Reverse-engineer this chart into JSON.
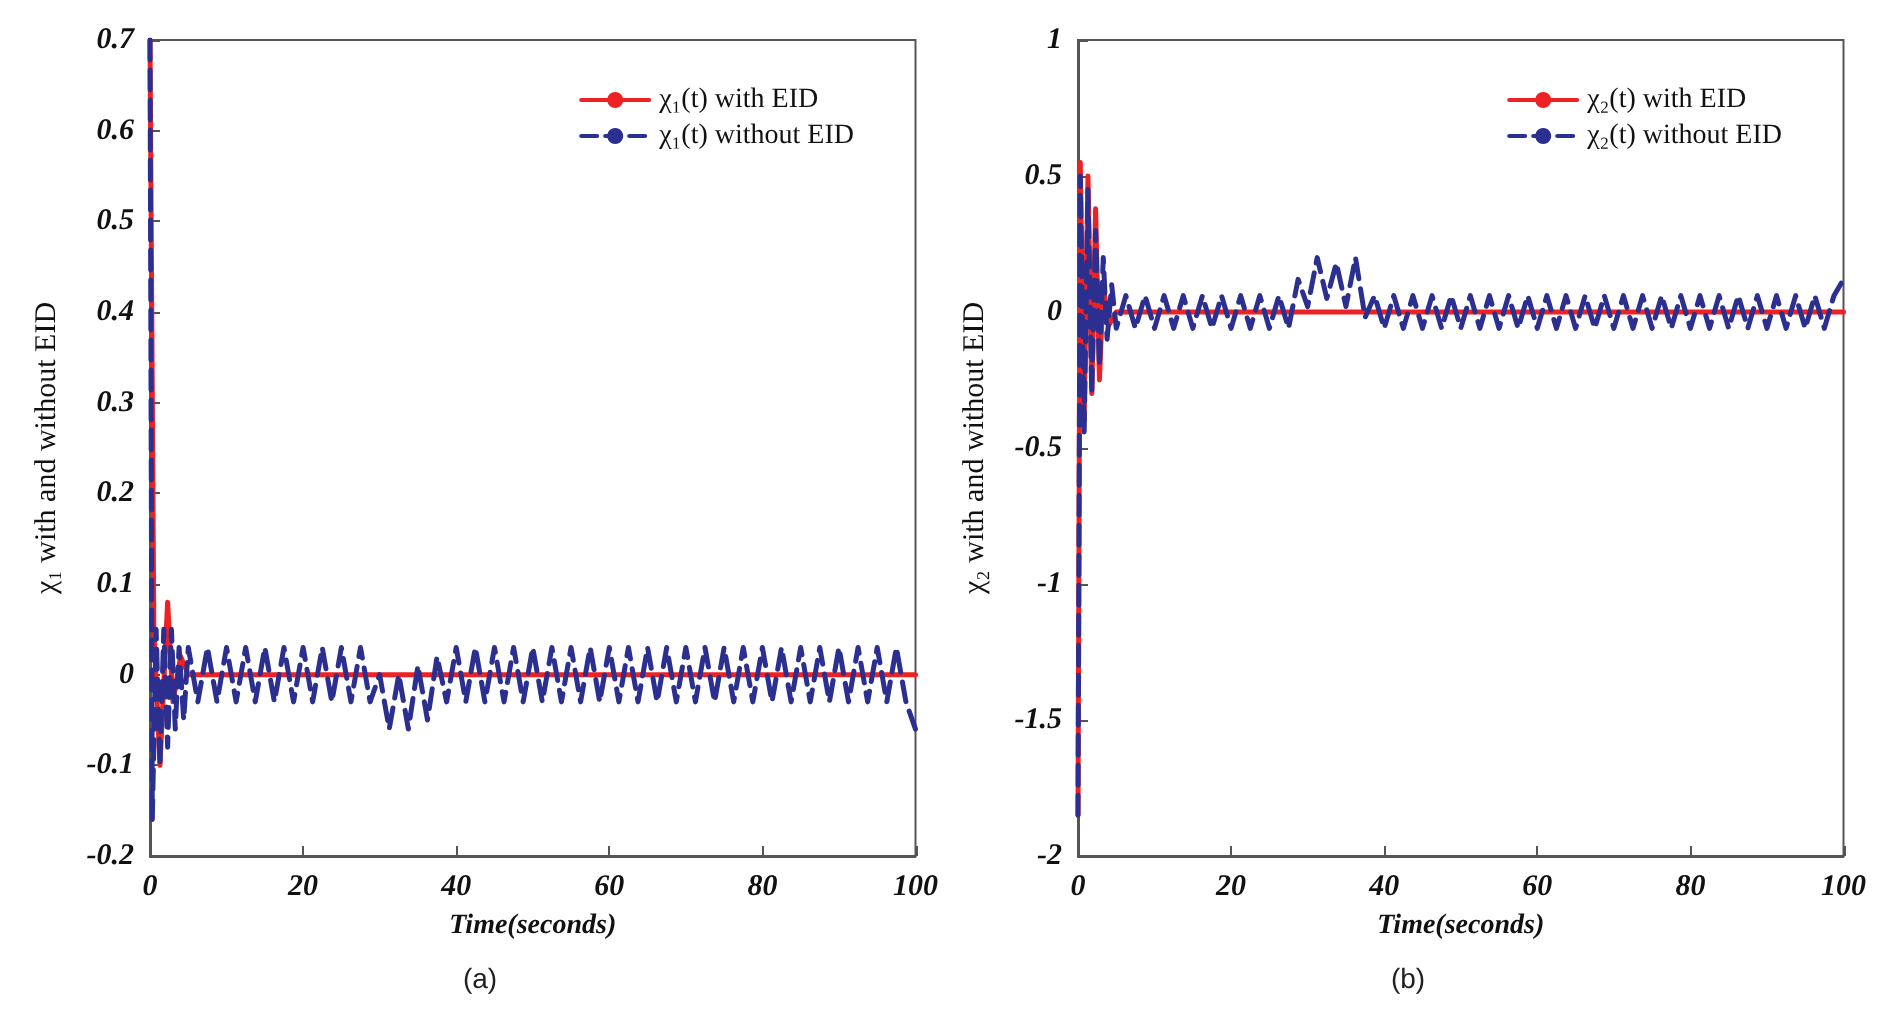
{
  "chart_data": [
    {
      "type": "line",
      "xlabel": "Time(seconds)",
      "ylabel": "χ₁ with and without EID",
      "annotations": [
        "(a)"
      ],
      "xlim": [
        0,
        100
      ],
      "xticks": [
        0,
        20,
        40,
        60,
        80,
        100
      ],
      "ylim": [
        -0.2,
        0.7
      ],
      "yticks": [
        -0.2,
        -0.1,
        0,
        0.1,
        0.2,
        0.3,
        0.4,
        0.5,
        0.6,
        0.7
      ],
      "grid": false,
      "legend": "top right",
      "marker": "none",
      "series": [
        {
          "name": "χ₁(t) with EID",
          "color": "#ee2222",
          "line_style": "solid",
          "x": [
            0,
            0.5,
            1.3,
            2.3,
            3,
            4,
            5,
            100
          ],
          "values": [
            0.7,
            0.05,
            -0.1,
            0.08,
            -0.03,
            0.02,
            0,
            0
          ]
        },
        {
          "name": "χ₁(t) without EID",
          "color": "#2b2f8f",
          "line_style": "dashed",
          "x": [
            0,
            0.3,
            0.8,
            1.3,
            1.8,
            2.3,
            2.8,
            3.3,
            3.8,
            4.4,
            5,
            6.25,
            7.5,
            8.75,
            10,
            11.25,
            12.5,
            13.75,
            15,
            16.25,
            17.5,
            18.75,
            20,
            21.25,
            22.5,
            23.75,
            25,
            26.25,
            27.5,
            28.75,
            30,
            31.25,
            32.5,
            33.75,
            35,
            36.25,
            37.5,
            38.75,
            40,
            41.25,
            42.5,
            43.75,
            45,
            46.25,
            47.5,
            48.75,
            50,
            51.25,
            52.5,
            53.75,
            55,
            56.25,
            57.5,
            58.75,
            60,
            61.25,
            62.5,
            63.75,
            65,
            66.25,
            67.5,
            68.75,
            70,
            71.25,
            72.5,
            73.75,
            75,
            76.25,
            77.5,
            78.75,
            80,
            81.25,
            82.5,
            83.75,
            85,
            86.25,
            87.5,
            88.75,
            90,
            91.25,
            92.5,
            93.75,
            95,
            96.25,
            97.5,
            98.75,
            100
          ],
          "values": [
            0.7,
            -0.16,
            0.05,
            -0.1,
            0.05,
            -0.08,
            0.05,
            -0.06,
            0.03,
            -0.05,
            0.03,
            -0.03,
            0.03,
            -0.03,
            0.03,
            -0.03,
            0.03,
            -0.03,
            0.03,
            -0.03,
            0.03,
            -0.03,
            0.03,
            -0.03,
            0.03,
            -0.03,
            0.03,
            -0.03,
            0.03,
            -0.03,
            0,
            -0.06,
            0,
            -0.06,
            0.01,
            -0.05,
            0.02,
            -0.03,
            0.03,
            -0.03,
            0.03,
            -0.03,
            0.03,
            -0.03,
            0.03,
            -0.03,
            0.03,
            -0.03,
            0.03,
            -0.03,
            0.03,
            -0.03,
            0.03,
            -0.03,
            0.03,
            -0.03,
            0.03,
            -0.03,
            0.03,
            -0.03,
            0.03,
            -0.03,
            0.03,
            -0.03,
            0.03,
            -0.03,
            0.03,
            -0.03,
            0.03,
            -0.03,
            0.03,
            -0.03,
            0.03,
            -0.03,
            0.03,
            -0.03,
            0.03,
            -0.03,
            0.03,
            -0.03,
            0.03,
            -0.03,
            0.03,
            -0.03,
            0.03,
            -0.03,
            -0.06
          ]
        }
      ]
    },
    {
      "type": "line",
      "xlabel": "Time(seconds)",
      "ylabel": "χ₂ with and without EID",
      "annotations": [
        "(b)"
      ],
      "xlim": [
        0,
        100
      ],
      "xticks": [
        0,
        20,
        40,
        60,
        80,
        100
      ],
      "ylim": [
        -2,
        1
      ],
      "yticks": [
        -2,
        -1.5,
        -1,
        -0.5,
        0,
        0.5,
        1
      ],
      "grid": false,
      "legend": "top right",
      "marker": "none",
      "series": [
        {
          "name": "χ₂(t) with EID",
          "color": "#ee2222",
          "line_style": "solid",
          "x": [
            0,
            0.3,
            0.8,
            1.3,
            1.8,
            2.3,
            2.8,
            3.3,
            4,
            5,
            100
          ],
          "values": [
            -1.85,
            0.55,
            -0.4,
            0.5,
            -0.3,
            0.38,
            -0.25,
            0.1,
            -0.05,
            0,
            0
          ]
        },
        {
          "name": "χ₂(t) without EID",
          "color": "#2b2f8f",
          "line_style": "dashed",
          "x": [
            0,
            0.3,
            0.8,
            1.3,
            1.8,
            2.3,
            2.8,
            3.3,
            3.8,
            4.4,
            5,
            6.25,
            7.5,
            8.75,
            10,
            11.25,
            12.5,
            13.75,
            15,
            16.25,
            17.5,
            18.75,
            20,
            21.25,
            22.5,
            23.75,
            25,
            26.25,
            27.5,
            28.75,
            30,
            31.25,
            32.5,
            33.75,
            35,
            36.25,
            37.5,
            38.75,
            40,
            41.25,
            42.5,
            43.75,
            45,
            46.25,
            47.5,
            48.75,
            50,
            51.25,
            52.5,
            53.75,
            55,
            56.25,
            57.5,
            58.75,
            60,
            61.25,
            62.5,
            63.75,
            65,
            66.25,
            67.5,
            68.75,
            70,
            71.25,
            72.5,
            73.75,
            75,
            76.25,
            77.5,
            78.75,
            80,
            81.25,
            82.5,
            83.75,
            85,
            86.25,
            87.5,
            88.75,
            90,
            91.25,
            92.5,
            93.75,
            95,
            96.25,
            97.5,
            98.75,
            100
          ],
          "values": [
            -1.85,
            0.5,
            -0.45,
            0.45,
            -0.3,
            0.3,
            -0.2,
            0.2,
            -0.1,
            0.1,
            -0.06,
            0.06,
            -0.06,
            0.06,
            -0.06,
            0.06,
            -0.06,
            0.06,
            -0.06,
            0.06,
            -0.06,
            0.06,
            -0.06,
            0.06,
            -0.06,
            0.06,
            -0.06,
            0.06,
            -0.06,
            0.12,
            0.02,
            0.2,
            0.05,
            0.18,
            0.02,
            0.2,
            -0.02,
            0.06,
            -0.06,
            0.06,
            -0.06,
            0.06,
            -0.06,
            0.06,
            -0.06,
            0.06,
            -0.06,
            0.06,
            -0.06,
            0.06,
            -0.06,
            0.06,
            -0.06,
            0.06,
            -0.06,
            0.06,
            -0.06,
            0.06,
            -0.06,
            0.06,
            -0.06,
            0.06,
            -0.06,
            0.06,
            -0.06,
            0.06,
            -0.06,
            0.06,
            -0.06,
            0.06,
            -0.06,
            0.06,
            -0.06,
            0.06,
            -0.06,
            0.06,
            -0.06,
            0.06,
            -0.06,
            0.06,
            -0.06,
            0.06,
            -0.06,
            0.06,
            -0.06,
            0.06,
            0.12
          ]
        }
      ]
    }
  ]
}
